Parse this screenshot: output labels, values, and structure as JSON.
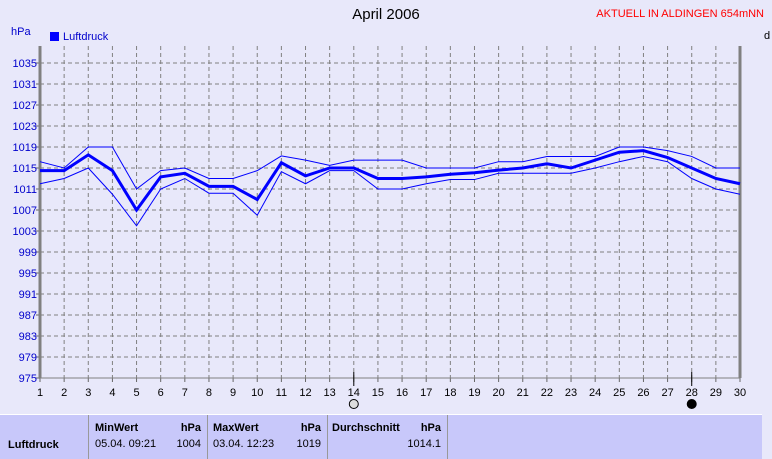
{
  "header": {
    "title": "April 2006",
    "status": "AKTUELL IN ALDINGEN 654mNN",
    "right_cut": "d"
  },
  "chart_data": {
    "type": "line",
    "title": "April 2006",
    "ylabel": "hPa",
    "ylim": [
      975,
      1037
    ],
    "yticks": [
      975,
      979,
      983,
      987,
      991,
      995,
      999,
      1003,
      1007,
      1011,
      1015,
      1019,
      1023,
      1027,
      1031,
      1035
    ],
    "x": [
      1,
      2,
      3,
      4,
      5,
      6,
      7,
      8,
      9,
      10,
      11,
      12,
      13,
      14,
      15,
      16,
      17,
      18,
      19,
      20,
      21,
      22,
      23,
      24,
      25,
      26,
      27,
      28,
      29,
      30
    ],
    "grid": true,
    "legend": "top-left",
    "series": [
      {
        "name": "Luftdruck",
        "role": "average",
        "values": [
          1014.5,
          1014.5,
          1017.5,
          1014.5,
          1007,
          1013.3,
          1014,
          1011.5,
          1011.5,
          1009,
          1016,
          1013.5,
          1015,
          1015,
          1013,
          1013,
          1013.3,
          1013.8,
          1014.1,
          1014.6,
          1015,
          1015.8,
          1015,
          1016.5,
          1018,
          1018.3,
          1017,
          1015,
          1013,
          1012
        ]
      },
      {
        "role": "max",
        "values": [
          1016.2,
          1015,
          1019,
          1019,
          1011,
          1014.5,
          1015,
          1013,
          1013,
          1014.5,
          1017.3,
          1016.5,
          1015.5,
          1016.5,
          1016.5,
          1016.5,
          1015,
          1015,
          1015,
          1016.2,
          1016.2,
          1017.2,
          1017.2,
          1017.2,
          1019,
          1019,
          1018.3,
          1017.2,
          1015,
          1015
        ]
      },
      {
        "role": "min",
        "values": [
          1012,
          1013,
          1015,
          1010,
          1004,
          1011,
          1013,
          1010.2,
          1010.2,
          1006,
          1014.3,
          1012,
          1014.5,
          1014.5,
          1011,
          1011,
          1012,
          1012.8,
          1012.8,
          1014,
          1014,
          1014,
          1014,
          1015,
          1016.2,
          1017.2,
          1016.2,
          1013,
          1011,
          1010
        ]
      }
    ],
    "moon_phases": [
      {
        "day": 14,
        "phase": "full-moon-icon"
      },
      {
        "day": 28,
        "phase": "new-moon-icon"
      }
    ],
    "colors": {
      "line": "#0000ff",
      "bg": "#e8e8fa",
      "grid": "#808080"
    }
  },
  "table": {
    "row_label": "Luftdruck",
    "min": {
      "header": "MinWert",
      "unit": "hPa",
      "date": "05.04.  09:21",
      "value": "1004"
    },
    "max": {
      "header": "MaxWert",
      "unit": "hPa",
      "date": "03.04.  12:23",
      "value": "1019"
    },
    "avg": {
      "header": "Durchschnitt",
      "unit": "hPa",
      "value": "1014.1"
    }
  }
}
